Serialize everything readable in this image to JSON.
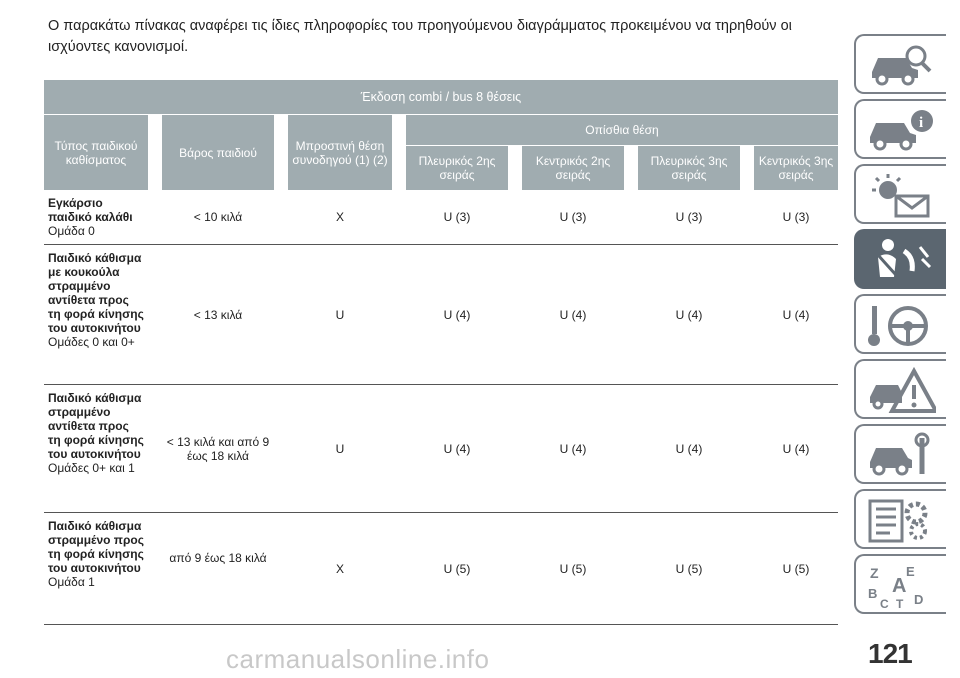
{
  "intro_text": "Ο παρακάτω πίνακας αναφέρει τις ίδιες πληροφορίες του προηγούμενου διαγράμματος προκειμένου να τηρηθούν οι ισχύοντες κανονισμοί.",
  "table": {
    "edition": "Έκδοση combi / bus 8 θέσεις",
    "headers": {
      "seat_type": "Τύπος παιδικού καθίσματος",
      "weight": "Βάρος παιδιού",
      "front": "Μπροστινή θέση συνοδηγού (1) (2)",
      "rear": "Οπίσθια θέση",
      "rear_cols": [
        "Πλευρικός 2ης σειράς",
        "Κεντρικός 2ης σειράς",
        "Πλευρικός 3ης σειράς",
        "Κεντρικός 3ης σειράς"
      ]
    },
    "rows": [
      {
        "type": "Εγκάρσιο παιδικό καλάθι",
        "group": "Ομάδα 0",
        "weight": "< 10 κιλά",
        "front": "X",
        "rear": [
          "U (3)",
          "U (3)",
          "U (3)",
          "U (3)"
        ]
      },
      {
        "type": "Παιδικό κάθισμα με κουκούλα στραμμένο αντίθετα προς τη φορά κίνησης του αυτοκινήτου",
        "group": "Ομάδες 0 και 0+",
        "weight": "< 13 κιλά",
        "front": "U",
        "rear": [
          "U (4)",
          "U (4)",
          "U (4)",
          "U (4)"
        ]
      },
      {
        "type": "Παιδικό κάθισμα στραμμένο αντίθετα προς τη φορά κίνησης του αυτοκινήτου",
        "group": "Ομάδες 0+ και 1",
        "weight": "< 13 κιλά και από 9 έως 18 κιλά",
        "front": "U",
        "rear": [
          "U (4)",
          "U (4)",
          "U (4)",
          "U (4)"
        ]
      },
      {
        "type": "Παιδικό κάθισμα στραμμένο προς τη φορά κίνησης του αυτοκινήτου",
        "group": "Ομάδα 1",
        "weight": "από 9 έως 18 κιλά",
        "front": "X",
        "rear": [
          "U (5)",
          "U (5)",
          "U (5)",
          "U (5)"
        ]
      }
    ]
  },
  "page_number": "121",
  "watermark": "carmanualsonline.info",
  "side_tabs": [
    {
      "icon": "car-search-icon",
      "active": false
    },
    {
      "icon": "car-info-icon",
      "active": false
    },
    {
      "icon": "warning-light-mail-icon",
      "active": false
    },
    {
      "icon": "seatbelt-airbag-icon",
      "active": true
    },
    {
      "icon": "key-steering-wheel-icon",
      "active": false
    },
    {
      "icon": "breakdown-warning-triangle-icon",
      "active": false
    },
    {
      "icon": "car-tools-icon",
      "active": false
    },
    {
      "icon": "specs-gears-icon",
      "active": false
    },
    {
      "icon": "alphabet-index-icon",
      "active": false
    }
  ],
  "colors": {
    "header_bg": "#a0acb0",
    "tab_border": "#7a8088",
    "tab_active": "#5b6670"
  }
}
